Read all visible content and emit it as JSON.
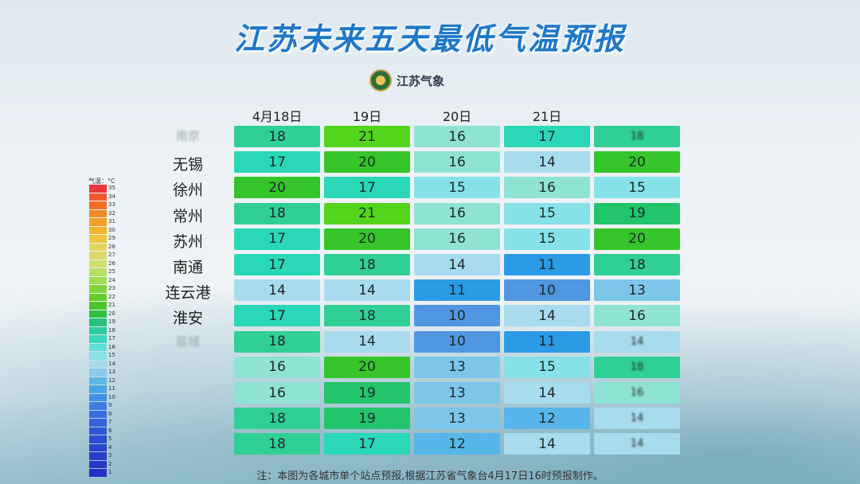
{
  "title": "江苏未来五天最低气温预报",
  "logo_text": "江苏气象",
  "columns": [
    "4月18日",
    "19日",
    "20日",
    "21日",
    ""
  ],
  "rows": [
    {
      "name": "南京",
      "blur": true,
      "values": [
        "18",
        "21",
        "16",
        "17",
        "18"
      ]
    },
    {
      "name": "无锡",
      "blur": false,
      "values": [
        "17",
        "20",
        "16",
        "14",
        "20"
      ]
    },
    {
      "name": "徐州",
      "blur": false,
      "values": [
        "20",
        "17",
        "15",
        "16",
        "15"
      ]
    },
    {
      "name": "常州",
      "blur": false,
      "values": [
        "18",
        "21",
        "16",
        "15",
        "19"
      ]
    },
    {
      "name": "苏州",
      "blur": false,
      "values": [
        "17",
        "20",
        "16",
        "15",
        "20"
      ]
    },
    {
      "name": "南通",
      "blur": false,
      "values": [
        "17",
        "18",
        "14",
        "11",
        "18"
      ]
    },
    {
      "name": "连云港",
      "blur": false,
      "values": [
        "14",
        "14",
        "11",
        "10",
        "13"
      ]
    },
    {
      "name": "淮安",
      "blur": false,
      "values": [
        "17",
        "18",
        "10",
        "14",
        "16"
      ]
    },
    {
      "name": "盐城",
      "blur": true,
      "values": [
        "18",
        "14",
        "10",
        "11",
        "14"
      ]
    },
    {
      "name": "",
      "blur": true,
      "values": [
        "16",
        "20",
        "13",
        "15",
        "18"
      ]
    },
    {
      "name": "",
      "blur": true,
      "values": [
        "16",
        "19",
        "13",
        "14",
        "16"
      ]
    },
    {
      "name": "",
      "blur": true,
      "values": [
        "18",
        "19",
        "13",
        "12",
        "14"
      ]
    },
    {
      "name": "",
      "blur": true,
      "values": [
        "18",
        "17",
        "12",
        "14",
        "14"
      ]
    }
  ],
  "blurred_last_col_rows": [
    0,
    8,
    9,
    10,
    11,
    12
  ],
  "legend": {
    "title": "气温：°C",
    "levels": [
      "35",
      "34",
      "33",
      "32",
      "31",
      "30",
      "29",
      "28",
      "27",
      "26",
      "25",
      "24",
      "23",
      "22",
      "21",
      "20",
      "19",
      "18",
      "17",
      "16",
      "15",
      "14",
      "13",
      "12",
      "11",
      "10",
      "9",
      "8",
      "7",
      "6",
      "5",
      "4",
      "3",
      "2",
      "1"
    ]
  },
  "note": "注：本图为各城市单个站点预报,根据江苏省气象台4月17日16时预报制作。"
}
